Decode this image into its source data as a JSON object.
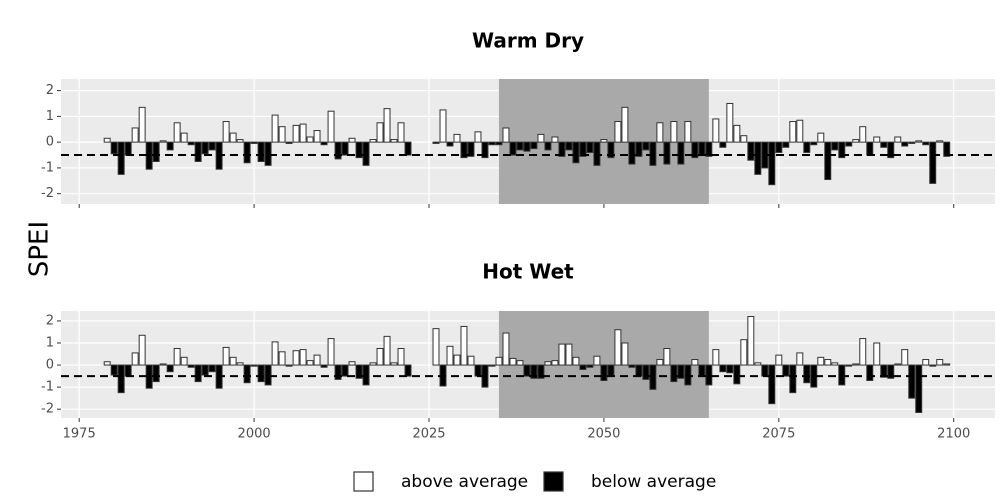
{
  "y_label": "SPEI",
  "legend": [
    {
      "name": "above average",
      "color": "#ffffff"
    },
    {
      "name": "below average",
      "color": "#000000"
    }
  ],
  "chart_data": [
    {
      "type": "bar",
      "title": "Warm Dry",
      "x": [
        1979,
        1980,
        1981,
        1982,
        1983,
        1984,
        1985,
        1986,
        1987,
        1988,
        1989,
        1990,
        1991,
        1992,
        1993,
        1994,
        1995,
        1996,
        1997,
        1998,
        1999,
        2000,
        2001,
        2002,
        2003,
        2004,
        2005,
        2006,
        2007,
        2008,
        2009,
        2010,
        2011,
        2012,
        2013,
        2014,
        2015,
        2016,
        2017,
        2018,
        2019,
        2020,
        2021,
        2022,
        2023,
        2024,
        2025,
        2026,
        2027,
        2028,
        2029,
        2030,
        2031,
        2032,
        2033,
        2034,
        2035,
        2036,
        2037,
        2038,
        2039,
        2040,
        2041,
        2042,
        2043,
        2044,
        2045,
        2046,
        2047,
        2048,
        2049,
        2050,
        2051,
        2052,
        2053,
        2054,
        2055,
        2056,
        2057,
        2058,
        2059,
        2060,
        2061,
        2062,
        2063,
        2064,
        2065,
        2066,
        2067,
        2068,
        2069,
        2070,
        2071,
        2072,
        2073,
        2074,
        2075,
        2076,
        2077,
        2078,
        2079,
        2080,
        2081,
        2082,
        2083,
        2084,
        2085,
        2086,
        2087,
        2088,
        2089,
        2090,
        2091,
        2092,
        2093,
        2094,
        2095,
        2096,
        2097,
        2098,
        2099
      ],
      "values": [
        0.15,
        -0.45,
        -1.25,
        -0.5,
        0.55,
        1.35,
        -1.05,
        -0.75,
        0.05,
        -0.3,
        0.75,
        0.35,
        -0.1,
        -0.75,
        -0.45,
        -0.3,
        -1.05,
        0.8,
        0.35,
        0.1,
        -0.8,
        -0.05,
        -0.75,
        -0.9,
        1.05,
        0.6,
        -0.05,
        0.65,
        0.7,
        0.2,
        0.45,
        -0.1,
        1.2,
        -0.65,
        -0.5,
        0.15,
        -0.6,
        -0.9,
        0.1,
        0.75,
        1.3,
        0.1,
        0.75,
        -0.5,
        null,
        null,
        null,
        -0.05,
        1.25,
        -0.15,
        0.3,
        -0.6,
        -0.55,
        0.4,
        -0.6,
        -0.1,
        -0.1,
        0.55,
        -0.5,
        -0.3,
        -0.35,
        -0.25,
        0.3,
        -0.3,
        0.2,
        -0.55,
        -0.3,
        -0.8,
        -0.55,
        -0.4,
        -0.9,
        0.1,
        -0.6,
        0.8,
        1.35,
        -0.85,
        -0.55,
        -0.3,
        -0.9,
        0.75,
        -0.85,
        0.8,
        -0.85,
        0.8,
        -0.6,
        -0.5,
        -0.55,
        0.9,
        -0.2,
        1.5,
        0.65,
        0.25,
        -0.7,
        -1.25,
        -1.0,
        -1.65,
        -0.4,
        -0.2,
        0.8,
        0.85,
        -0.4,
        -0.1,
        0.35,
        -1.45,
        -0.3,
        -0.6,
        -0.15,
        0.1,
        0.6,
        -0.5,
        0.2,
        -0.2,
        -0.6,
        0.2,
        -0.15,
        -0.05,
        0.05,
        -0.1,
        -1.6,
        0.05,
        -0.55
      ],
      "xlim": [
        1972.4,
        2105.9
      ],
      "xticks": [
        1975,
        2000,
        2025,
        2050,
        2075,
        2100
      ],
      "ylim": [
        -2.4,
        2.45
      ],
      "yticks": [
        -2,
        -1,
        0,
        1,
        2
      ],
      "grid": true,
      "highlight": [
        2035,
        2065
      ],
      "threshold": -0.5
    },
    {
      "type": "bar",
      "title": "Hot Wet",
      "x": [
        1979,
        1980,
        1981,
        1982,
        1983,
        1984,
        1985,
        1986,
        1987,
        1988,
        1989,
        1990,
        1991,
        1992,
        1993,
        1994,
        1995,
        1996,
        1997,
        1998,
        1999,
        2000,
        2001,
        2002,
        2003,
        2004,
        2005,
        2006,
        2007,
        2008,
        2009,
        2010,
        2011,
        2012,
        2013,
        2014,
        2015,
        2016,
        2017,
        2018,
        2019,
        2020,
        2021,
        2022,
        2023,
        2024,
        2025,
        2026,
        2027,
        2028,
        2029,
        2030,
        2031,
        2032,
        2033,
        2034,
        2035,
        2036,
        2037,
        2038,
        2039,
        2040,
        2041,
        2042,
        2043,
        2044,
        2045,
        2046,
        2047,
        2048,
        2049,
        2050,
        2051,
        2052,
        2053,
        2054,
        2055,
        2056,
        2057,
        2058,
        2059,
        2060,
        2061,
        2062,
        2063,
        2064,
        2065,
        2066,
        2067,
        2068,
        2069,
        2070,
        2071,
        2072,
        2073,
        2074,
        2075,
        2076,
        2077,
        2078,
        2079,
        2080,
        2081,
        2082,
        2083,
        2084,
        2085,
        2086,
        2087,
        2088,
        2089,
        2090,
        2091,
        2092,
        2093,
        2094,
        2095,
        2096,
        2097,
        2098,
        2099
      ],
      "values": [
        0.15,
        -0.45,
        -1.25,
        -0.5,
        0.55,
        1.35,
        -1.05,
        -0.75,
        0.05,
        -0.3,
        0.75,
        0.35,
        -0.1,
        -0.75,
        -0.45,
        -0.3,
        -1.05,
        0.8,
        0.35,
        0.1,
        -0.8,
        -0.05,
        -0.75,
        -0.9,
        1.05,
        0.6,
        -0.05,
        0.65,
        0.7,
        0.2,
        0.45,
        -0.1,
        1.2,
        -0.65,
        -0.5,
        0.15,
        -0.6,
        -0.9,
        0.1,
        0.75,
        1.3,
        0.1,
        0.75,
        -0.5,
        null,
        null,
        null,
        1.65,
        -0.95,
        0.85,
        0.45,
        1.75,
        0.4,
        -0.5,
        -1.0,
        -0.05,
        0.35,
        1.45,
        0.3,
        0.2,
        -0.5,
        -0.6,
        -0.6,
        0.15,
        0.2,
        0.95,
        0.95,
        0.35,
        -0.2,
        -0.1,
        0.4,
        -0.7,
        -0.5,
        1.6,
        1.0,
        -0.1,
        -0.5,
        -0.65,
        -1.1,
        0.25,
        0.75,
        -0.75,
        -0.6,
        -0.9,
        0.25,
        -0.5,
        -0.9,
        0.7,
        -0.3,
        -0.35,
        -0.85,
        1.15,
        2.2,
        0.1,
        -0.5,
        -1.75,
        0.45,
        -0.5,
        -1.25,
        0.55,
        -0.8,
        -1.0,
        0.35,
        0.25,
        0.1,
        -0.9,
        -0.05,
        0.05,
        1.2,
        -0.7,
        1.0,
        -0.55,
        -0.6,
        0.05,
        0.7,
        -1.5,
        -2.15,
        0.25,
        -0.05,
        0.25,
        0.05
      ],
      "xlim": [
        1972.4,
        2105.9
      ],
      "xticks": [
        1975,
        2000,
        2025,
        2050,
        2075,
        2100
      ],
      "ylim": [
        -2.4,
        2.45
      ],
      "yticks": [
        -2,
        -1,
        0,
        1,
        2
      ],
      "grid": true,
      "highlight": [
        2035,
        2065
      ],
      "threshold": -0.5
    }
  ]
}
